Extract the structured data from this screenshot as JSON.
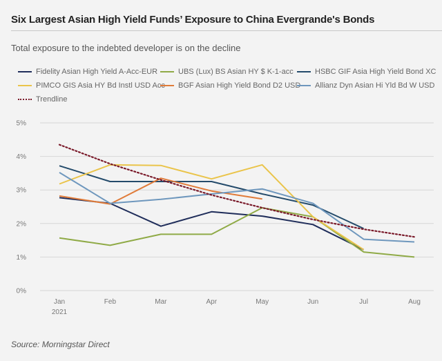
{
  "header": {
    "title": "Six Largest Asian High Yield Funds’ Exposure to China Evergrande's Bonds",
    "subtitle": "Total exposure to the indebted developer is on the decline"
  },
  "footer": {
    "source": "Source: Morningstar Direct"
  },
  "chart_data": {
    "type": "line",
    "title": "Six Largest Asian High Yield Funds’ Exposure to China Evergrande's Bonds",
    "subtitle": "Total exposure to the indebted developer is on the decline",
    "xlabel": "",
    "ylabel": "",
    "categories": [
      "Jan",
      "Feb",
      "Mar",
      "Apr",
      "May",
      "Jun",
      "Jul",
      "Aug"
    ],
    "category_sublabels": [
      "2021",
      "",
      "",
      "",
      "",
      "",
      "",
      ""
    ],
    "y_ticks": [
      "0%",
      "1%",
      "2%",
      "3%",
      "4%",
      "5%"
    ],
    "ylim": [
      0,
      5
    ],
    "grid": true,
    "legend_position": "top",
    "series": [
      {
        "name": "Fidelity Asian High Yield A-Acc-EUR",
        "color": "#1f2d5a",
        "style": "solid",
        "values": [
          2.77,
          2.6,
          1.92,
          2.35,
          2.22,
          1.97,
          1.22,
          null
        ]
      },
      {
        "name": "UBS (Lux) BS Asian HY $ K-1-acc",
        "color": "#8faa46",
        "style": "solid",
        "values": [
          1.57,
          1.35,
          1.68,
          1.68,
          2.47,
          2.2,
          1.15,
          1.0
        ]
      },
      {
        "name": "HSBC GIF Asia High Yield Bond XC",
        "color": "#234a6a",
        "style": "solid",
        "values": [
          3.72,
          3.25,
          3.25,
          3.25,
          2.88,
          2.55,
          1.85,
          null
        ]
      },
      {
        "name": "PIMCO GIS Asia HY Bd Instl USD Acc",
        "color": "#eac44a",
        "style": "solid",
        "values": [
          3.18,
          3.75,
          3.73,
          3.33,
          3.75,
          2.2,
          1.22,
          null
        ]
      },
      {
        "name": "BGF Asian High Yield Bond D2 USD",
        "color": "#e07b39",
        "style": "solid",
        "values": [
          2.82,
          2.58,
          3.35,
          2.97,
          2.73,
          null,
          null,
          null
        ]
      },
      {
        "name": "Allianz Dyn Asian Hi Yld Bd W USD",
        "color": "#6e97bd",
        "style": "solid",
        "values": [
          3.52,
          2.6,
          2.72,
          2.88,
          3.03,
          2.6,
          1.53,
          1.45
        ]
      },
      {
        "name": "Trendline",
        "color": "#7a1a2a",
        "style": "dotted",
        "values": [
          4.35,
          3.78,
          3.3,
          2.85,
          2.47,
          2.12,
          1.83,
          1.6
        ]
      }
    ]
  }
}
